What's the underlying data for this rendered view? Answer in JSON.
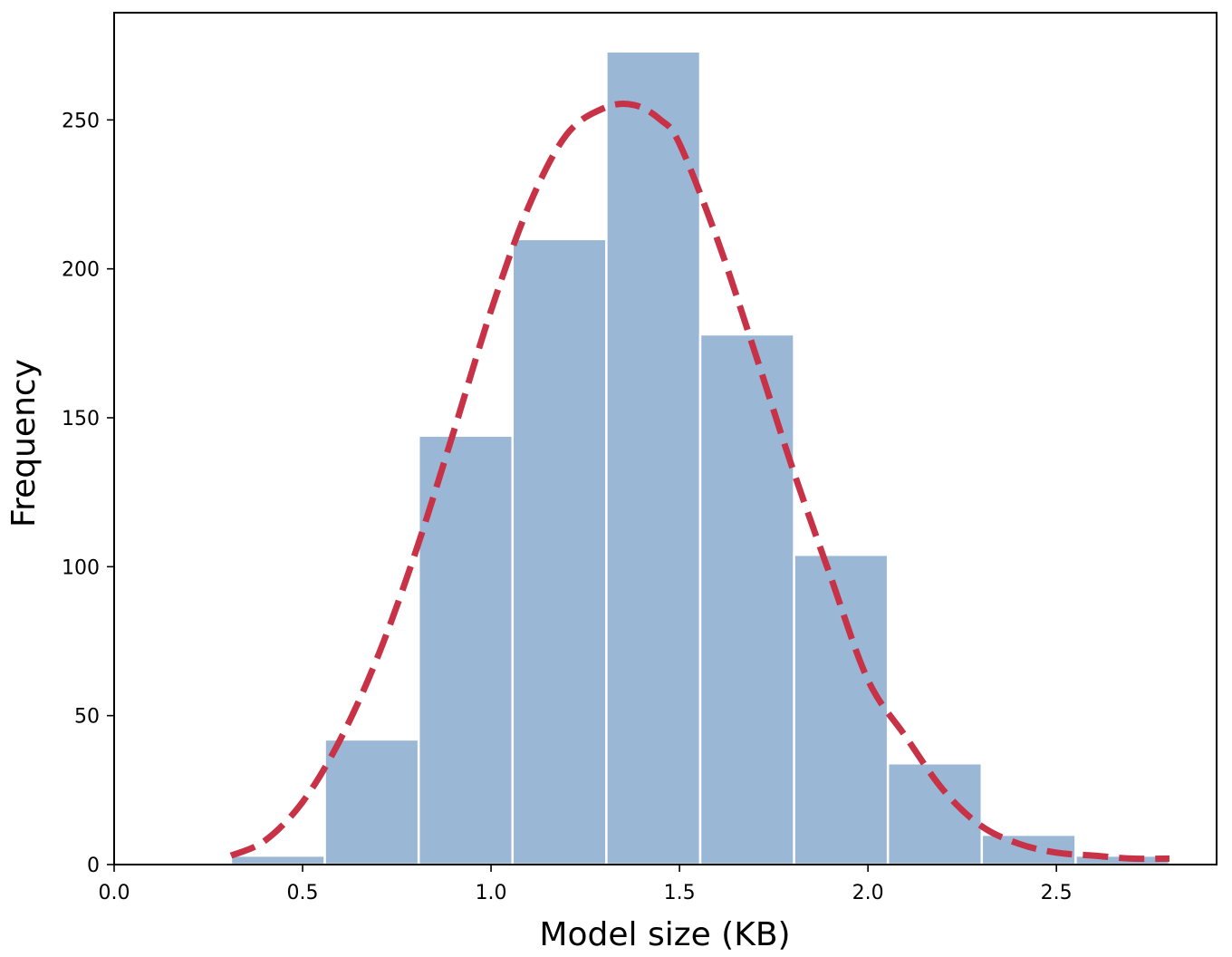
{
  "chart_data": {
    "type": "bar",
    "xlabel": "Model size (KB)",
    "ylabel": "Frequency",
    "xlim": [
      0.0,
      2.925
    ],
    "ylim": [
      0,
      286
    ],
    "xticks": [
      "0.0",
      "0.5",
      "1.0",
      "1.5",
      "2.0",
      "2.5"
    ],
    "yticks": [
      "0",
      "50",
      "100",
      "150",
      "200",
      "250"
    ],
    "grid": false,
    "colors": {
      "bars": "#9ab8d6",
      "curve": "#c83246"
    },
    "histogram": {
      "bin_edges": [
        0.31,
        0.559,
        0.808,
        1.057,
        1.306,
        1.555,
        1.804,
        2.053,
        2.302,
        2.551,
        2.8
      ],
      "counts": [
        3,
        42,
        144,
        210,
        273,
        178,
        104,
        34,
        10,
        3
      ]
    },
    "fit_curve": {
      "style": "dashed",
      "x": [
        0.31,
        0.4,
        0.5,
        0.6,
        0.7,
        0.8,
        0.9,
        1.0,
        1.1,
        1.2,
        1.3,
        1.38,
        1.45,
        1.5,
        1.6,
        1.7,
        1.8,
        1.9,
        2.0,
        2.1,
        2.2,
        2.3,
        2.4,
        2.5,
        2.6,
        2.7,
        2.8
      ],
      "y": [
        3,
        8,
        21,
        42,
        70,
        105,
        145,
        186,
        221,
        245,
        254,
        255,
        250,
        242,
        210,
        172,
        133,
        97,
        62,
        43,
        25,
        13,
        7,
        4,
        3,
        2,
        2
      ]
    }
  }
}
